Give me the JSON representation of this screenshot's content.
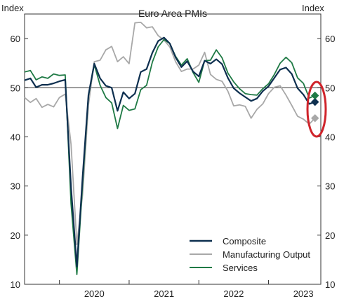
{
  "chart_data": {
    "type": "line",
    "title": "Euro Area PMIs",
    "ylabel_left": "Index",
    "ylabel_right": "Index",
    "ylim": [
      10,
      65
    ],
    "yticks": [
      10,
      20,
      30,
      40,
      50,
      60
    ],
    "reference_line": 50,
    "xlim": [
      "2019-07",
      "2023-10"
    ],
    "xticks": [
      "2020",
      "2021",
      "2022",
      "2023"
    ],
    "grid": false,
    "legend_position": "bottom-right",
    "highlight": "red ellipse around latest flash estimates",
    "x": [
      "2019-07",
      "2019-08",
      "2019-09",
      "2019-10",
      "2019-11",
      "2019-12",
      "2020-01",
      "2020-02",
      "2020-03",
      "2020-04",
      "2020-05",
      "2020-06",
      "2020-07",
      "2020-08",
      "2020-09",
      "2020-10",
      "2020-11",
      "2020-12",
      "2021-01",
      "2021-02",
      "2021-03",
      "2021-04",
      "2021-05",
      "2021-06",
      "2021-07",
      "2021-08",
      "2021-09",
      "2021-10",
      "2021-11",
      "2021-12",
      "2022-01",
      "2022-02",
      "2022-03",
      "2022-04",
      "2022-05",
      "2022-06",
      "2022-07",
      "2022-08",
      "2022-09",
      "2022-10",
      "2022-11",
      "2022-12",
      "2023-01",
      "2023-02",
      "2023-03",
      "2023-04",
      "2023-05",
      "2023-06",
      "2023-07",
      "2023-08",
      "2023-09"
    ],
    "series": [
      {
        "name": "Composite",
        "color": "#0d2f4f",
        "values": [
          51.5,
          51.9,
          50.1,
          50.6,
          50.6,
          50.9,
          51.3,
          51.6,
          29.7,
          13.6,
          31.9,
          48.5,
          54.9,
          51.9,
          50.4,
          50.0,
          45.3,
          49.1,
          47.8,
          48.8,
          53.2,
          53.8,
          57.1,
          59.5,
          60.2,
          59.0,
          56.2,
          54.2,
          55.4,
          53.3,
          52.3,
          55.5,
          54.9,
          55.8,
          54.8,
          52.0,
          49.9,
          48.9,
          48.1,
          47.3,
          47.8,
          49.3,
          50.3,
          52.0,
          53.7,
          54.1,
          52.8,
          49.9,
          48.6,
          46.7,
          47.1
        ]
      },
      {
        "name": "Manufacturing Output",
        "color": "#a8a8a8",
        "values": [
          48.0,
          47.0,
          47.8,
          46.0,
          46.6,
          46.1,
          48.0,
          48.7,
          38.5,
          18.1,
          28.3,
          46.5,
          55.3,
          55.6,
          57.7,
          58.4,
          55.3,
          56.3,
          54.9,
          63.2,
          63.3,
          62.2,
          62.4,
          60.6,
          59.7,
          58.3,
          55.3,
          53.3,
          53.8,
          53.8,
          54.6,
          57.2,
          52.7,
          51.7,
          51.3,
          49.3,
          46.3,
          46.5,
          46.2,
          43.8,
          45.6,
          46.7,
          48.8,
          50.1,
          50.4,
          48.5,
          46.4,
          44.2,
          43.6,
          42.6,
          43.8
        ]
      },
      {
        "name": "Services",
        "color": "#1f7a45",
        "values": [
          53.2,
          53.5,
          51.6,
          52.2,
          51.9,
          52.8,
          52.5,
          52.6,
          26.4,
          12.0,
          30.5,
          48.3,
          54.7,
          50.5,
          48.0,
          46.9,
          41.7,
          46.4,
          45.4,
          45.7,
          49.6,
          50.5,
          55.2,
          58.3,
          59.8,
          59.0,
          56.4,
          54.6,
          55.9,
          53.1,
          51.1,
          55.5,
          55.6,
          57.7,
          56.1,
          53.0,
          51.2,
          49.8,
          48.8,
          48.6,
          48.5,
          49.8,
          50.8,
          52.7,
          55.0,
          56.2,
          55.1,
          52.0,
          50.9,
          47.9,
          48.4
        ]
      }
    ],
    "latest_points": [
      {
        "series": "Composite",
        "x": "2023-09",
        "y": 47.1,
        "marker": "diamond"
      },
      {
        "series": "Manufacturing Output",
        "x": "2023-09",
        "y": 43.8,
        "marker": "diamond"
      },
      {
        "series": "Services",
        "x": "2023-09",
        "y": 48.4,
        "marker": "diamond"
      }
    ],
    "colors": {
      "axis": "#333333",
      "reference": "#333333",
      "highlight": "#d0242b"
    }
  }
}
